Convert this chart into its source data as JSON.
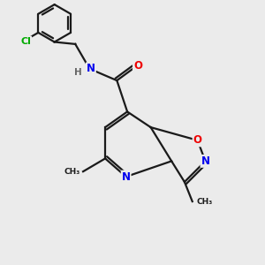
{
  "background_color": "#ebebeb",
  "bond_color": "#1a1a1a",
  "atom_colors": {
    "C": "#1a1a1a",
    "N": "#0000ee",
    "O": "#ee0000",
    "Cl": "#00aa00",
    "H": "#666666"
  },
  "figsize": [
    3.0,
    3.0
  ],
  "dpi": 100,
  "lw": 1.6
}
